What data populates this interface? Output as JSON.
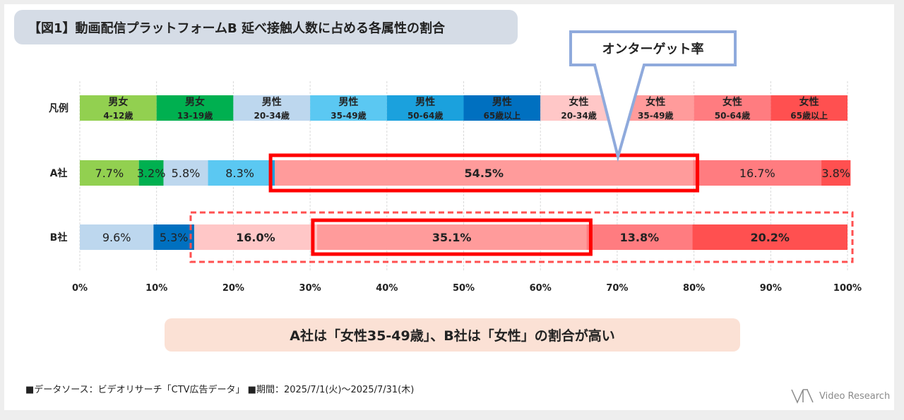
{
  "title": "【図1】動画配信プラットフォームB 延べ接触人数に占める各属性の割合",
  "callout": "オンターゲット率",
  "conclusion": "A社は「女性35-49歳」、B社は「女性」の割合が高い",
  "footnote": "■データソース：ビデオリサーチ「CTV広告データ」 ■期間：2025/7/1(火)～2025/7/31(木)",
  "logo_text": "Video Research",
  "chart_data": {
    "type": "bar",
    "orientation": "horizontal",
    "stacked": true,
    "percent_scale": true,
    "xlim": [
      0,
      100
    ],
    "x_ticks": [
      "0%",
      "10%",
      "20%",
      "30%",
      "40%",
      "50%",
      "60%",
      "70%",
      "80%",
      "90%",
      "100%"
    ],
    "categories": [
      "凡例",
      "A社",
      "B社"
    ],
    "legend": [
      {
        "line1": "男女",
        "line2": "4-12歳",
        "color": "#92d050"
      },
      {
        "line1": "男女",
        "line2": "13-19歳",
        "color": "#00b050"
      },
      {
        "line1": "男性",
        "line2": "20-34歳",
        "color": "#bdd7ee"
      },
      {
        "line1": "男性",
        "line2": "35-49歳",
        "color": "#5bc8f2"
      },
      {
        "line1": "男性",
        "line2": "50-64歳",
        "color": "#1ba1dd"
      },
      {
        "line1": "男性",
        "line2": "65歳以上",
        "color": "#0070c0"
      },
      {
        "line1": "女性",
        "line2": "20-34歳",
        "color": "#ffc7c7"
      },
      {
        "line1": "女性",
        "line2": "35-49歳",
        "color": "#ff9b9b"
      },
      {
        "line1": "女性",
        "line2": "50-64歳",
        "color": "#ff7c80"
      },
      {
        "line1": "女性",
        "line2": "65歳以上",
        "color": "#ff5050"
      }
    ],
    "rows": [
      {
        "name": "A社",
        "values": [
          7.7,
          3.2,
          5.8,
          8.3,
          0.4,
          0.0,
          0.0,
          54.5,
          16.7,
          3.8
        ],
        "labels": [
          "7.7%",
          "3.2%",
          "5.8%",
          "8.3%",
          "",
          "",
          "",
          "54.5%",
          "16.7%",
          "3.8%"
        ],
        "bold": [
          false,
          false,
          false,
          false,
          false,
          false,
          false,
          true,
          false,
          false
        ]
      },
      {
        "name": "B社",
        "values": [
          0.0,
          0.0,
          9.6,
          0.0,
          0.0,
          5.3,
          16.0,
          35.1,
          13.8,
          20.2
        ],
        "labels": [
          "",
          "",
          "9.6%",
          "",
          "",
          "5.3%",
          "16.0%",
          "35.1%",
          "13.8%",
          "20.2%"
        ],
        "bold": [
          false,
          false,
          false,
          false,
          false,
          false,
          true,
          true,
          true,
          true
        ]
      }
    ]
  }
}
